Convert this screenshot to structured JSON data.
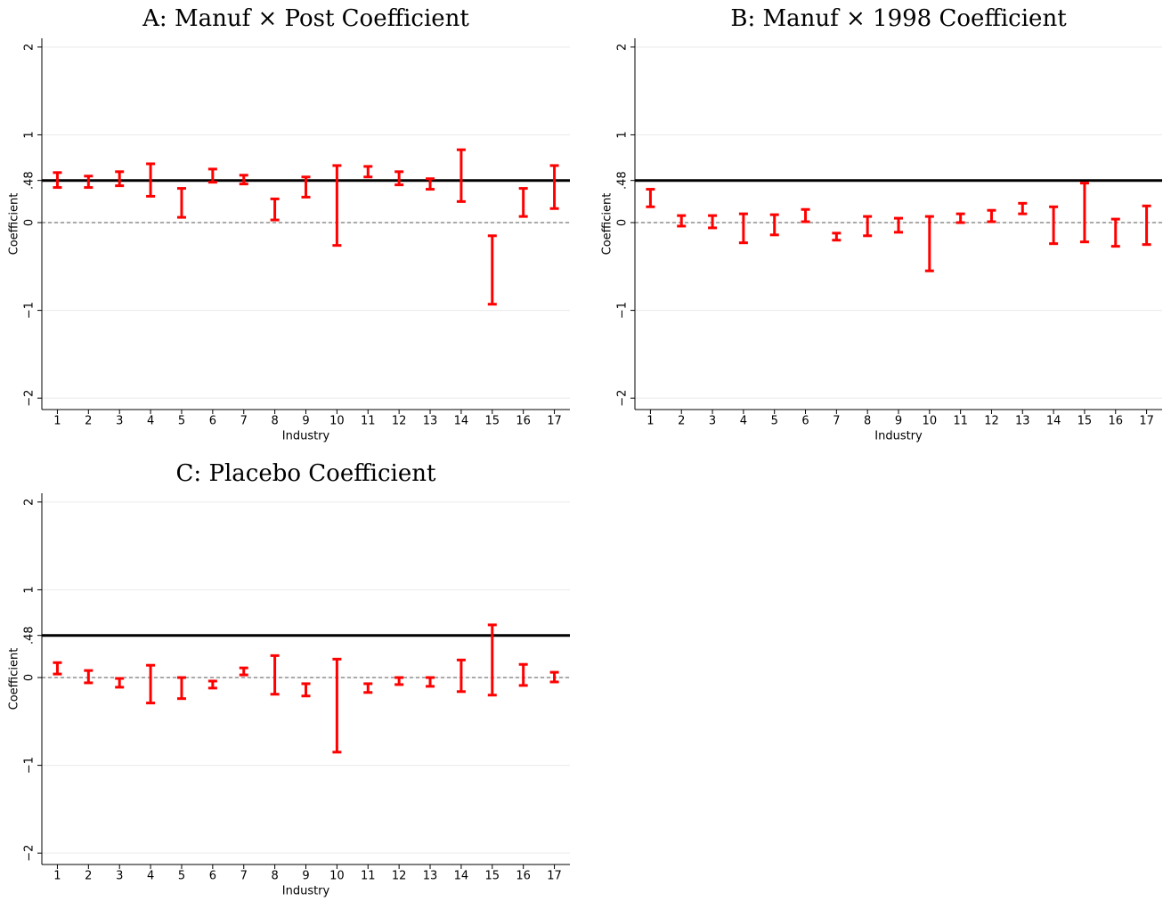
{
  "chart_data": [
    {
      "type": "rangebar",
      "title": "A: Manuf × Post Coefficient",
      "xlabel": "Industry",
      "ylabel": "Coefficient",
      "categories": [
        1,
        2,
        3,
        4,
        5,
        6,
        7,
        8,
        9,
        10,
        11,
        12,
        13,
        14,
        15,
        16,
        17
      ],
      "low": [
        0.4,
        0.4,
        0.42,
        0.3,
        0.06,
        0.46,
        0.44,
        0.03,
        0.29,
        -0.26,
        0.52,
        0.43,
        0.38,
        0.24,
        -0.93,
        0.07,
        0.16
      ],
      "high": [
        0.57,
        0.53,
        0.58,
        0.67,
        0.39,
        0.61,
        0.54,
        0.27,
        0.52,
        0.65,
        0.64,
        0.58,
        0.5,
        0.83,
        -0.15,
        0.39,
        0.65
      ],
      "color": "#ff0000",
      "xlim": [
        0.5,
        17.5
      ],
      "ylim": [
        -2.13,
        2.1
      ],
      "yticks": [
        {
          "value": -2,
          "label": "−2"
        },
        {
          "value": -1,
          "label": "−1"
        },
        0,
        {
          "value": 0.48,
          "label": ".48"
        },
        1,
        2
      ],
      "reference_line": 0.48,
      "zero_line": true,
      "grid": true
    },
    {
      "type": "rangebar",
      "title": "B: Manuf × 1998 Coefficient",
      "xlabel": "Industry",
      "ylabel": "Coefficient",
      "categories": [
        1,
        2,
        3,
        4,
        5,
        6,
        7,
        8,
        9,
        10,
        11,
        12,
        13,
        14,
        15,
        16,
        17
      ],
      "low": [
        0.18,
        -0.04,
        -0.06,
        -0.23,
        -0.14,
        0.01,
        -0.2,
        -0.15,
        -0.11,
        -0.55,
        0.0,
        0.01,
        0.1,
        -0.24,
        -0.22,
        -0.27,
        -0.25
      ],
      "high": [
        0.38,
        0.08,
        0.08,
        0.1,
        0.09,
        0.15,
        -0.12,
        0.07,
        0.05,
        0.07,
        0.1,
        0.14,
        0.22,
        0.18,
        0.45,
        0.04,
        0.19
      ],
      "color": "#ff0000",
      "xlim": [
        0.5,
        17.5
      ],
      "ylim": [
        -2.13,
        2.1
      ],
      "yticks": [
        {
          "value": -2,
          "label": "−2"
        },
        {
          "value": -1,
          "label": "−1"
        },
        0,
        {
          "value": 0.48,
          "label": ".48"
        },
        1,
        2
      ],
      "reference_line": 0.48,
      "zero_line": true,
      "grid": true
    },
    {
      "type": "rangebar",
      "title": "C: Placebo Coefficient",
      "xlabel": "Industry",
      "ylabel": "Coefficient",
      "categories": [
        1,
        2,
        3,
        4,
        5,
        6,
        7,
        8,
        9,
        10,
        11,
        12,
        13,
        14,
        15,
        16,
        17
      ],
      "low": [
        0.04,
        -0.06,
        -0.11,
        -0.29,
        -0.24,
        -0.12,
        0.03,
        -0.19,
        -0.21,
        -0.85,
        -0.17,
        -0.08,
        -0.1,
        -0.16,
        -0.2,
        -0.09,
        -0.05
      ],
      "high": [
        0.17,
        0.08,
        -0.01,
        0.14,
        0.0,
        -0.04,
        0.11,
        0.25,
        -0.07,
        0.21,
        -0.07,
        0.0,
        0.0,
        0.2,
        0.6,
        0.15,
        0.06
      ],
      "color": "#ff0000",
      "xlim": [
        0.5,
        17.5
      ],
      "ylim": [
        -2.13,
        2.1
      ],
      "yticks": [
        {
          "value": -2,
          "label": "−2"
        },
        {
          "value": -1,
          "label": "−1"
        },
        0,
        {
          "value": 0.48,
          "label": ".48"
        },
        1,
        2
      ],
      "reference_line": 0.48,
      "zero_line": true,
      "grid": true
    }
  ]
}
